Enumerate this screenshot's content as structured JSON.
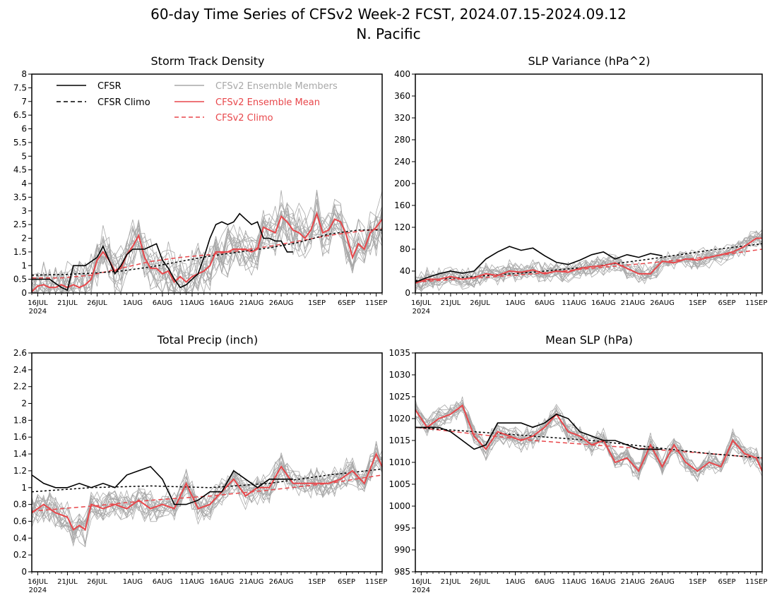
{
  "page": {
    "title": "60-day Time Series of CFSv2 Week-2 FCST, 2024.07.15-2024.09.12",
    "subtitle": "N. Pacific"
  },
  "legend": {
    "cfsr": "CFSR",
    "cfsr_climo": "CFSR Climo",
    "members": "CFSv2 Ensemble Members",
    "mean": "CFSv2 Ensemble Mean",
    "cfs_climo": "CFSv2 Climo"
  },
  "colors": {
    "cfsr": "#000000",
    "cfsr_climo": "#000000",
    "members": "#a8a8a8",
    "mean": "#e8474b",
    "cfs_climo": "#e8474b"
  },
  "xaxis": {
    "ticks": [
      "16JUL",
      "21JUL",
      "26JUL",
      "1AUG",
      "6AUG",
      "11AUG",
      "16AUG",
      "21AUG",
      "26AUG",
      "1SEP",
      "6SEP",
      "11SEP"
    ],
    "tick_days": [
      1,
      6,
      11,
      17,
      22,
      27,
      32,
      37,
      42,
      48,
      53,
      58
    ],
    "year": "2024",
    "range": [
      0,
      59
    ]
  },
  "chart_data": [
    {
      "id": "storm",
      "type": "line",
      "title": "Storm Track Density",
      "ylim": [
        0,
        8
      ],
      "yticks": [
        "0",
        "0.5",
        "1",
        "1.5",
        "2",
        "2.5",
        "3",
        "3.5",
        "4",
        "4.5",
        "5",
        "5.5",
        "6",
        "6.5",
        "7",
        "7.5",
        "8"
      ],
      "ytick_values": [
        0,
        0.5,
        1,
        1.5,
        2,
        2.5,
        3,
        3.5,
        4,
        4.5,
        5,
        5.5,
        6,
        6.5,
        7,
        7.5,
        8
      ],
      "legend": true,
      "member_count": 16,
      "member_spread": 0.75,
      "cfsr": {
        "x": [
          0,
          3,
          5,
          6,
          7,
          8,
          9,
          11,
          12,
          13,
          14,
          15,
          16,
          17,
          18,
          19,
          20,
          21,
          22,
          23,
          24,
          25,
          26,
          27,
          28,
          29,
          30,
          31,
          32,
          33,
          34,
          35,
          36,
          37,
          38,
          39,
          40,
          41,
          42,
          43,
          44
        ],
        "y": [
          0.5,
          0.5,
          0.2,
          0.1,
          1.0,
          1.0,
          1.0,
          1.3,
          1.7,
          1.2,
          0.7,
          1.0,
          1.4,
          1.6,
          1.6,
          1.6,
          1.7,
          1.8,
          1.2,
          0.9,
          0.5,
          0.2,
          0.3,
          0.5,
          0.7,
          1.3,
          2.0,
          2.5,
          2.6,
          2.5,
          2.6,
          2.9,
          2.7,
          2.5,
          2.6,
          2.0,
          2.0,
          1.9,
          1.9,
          1.5,
          1.5
        ]
      },
      "cfsr_climo": {
        "x": [
          0,
          5,
          10,
          15,
          20,
          25,
          30,
          35,
          40,
          45,
          50,
          55,
          59
        ],
        "y": [
          0.65,
          0.67,
          0.72,
          0.8,
          0.95,
          1.15,
          1.35,
          1.5,
          1.65,
          1.85,
          2.15,
          2.3,
          2.3
        ]
      },
      "mean": {
        "x": [
          0,
          1,
          2,
          3,
          4,
          5,
          6,
          7,
          8,
          9,
          10,
          11,
          12,
          13,
          14,
          15,
          16,
          17,
          18,
          19,
          20,
          21,
          22,
          23,
          24,
          25,
          26,
          27,
          28,
          29,
          30,
          31,
          32,
          33,
          34,
          35,
          36,
          37,
          38,
          39,
          40,
          41,
          42,
          43,
          44,
          45,
          46,
          47,
          48,
          49,
          50,
          51,
          52,
          53,
          54,
          55,
          56,
          57,
          58,
          59
        ],
        "y": [
          0.05,
          0.25,
          0.3,
          0.2,
          0.2,
          0.3,
          0.2,
          0.3,
          0.2,
          0.3,
          0.5,
          1.2,
          1.5,
          1.2,
          0.8,
          0.9,
          1.4,
          1.7,
          2.1,
          1.3,
          0.9,
          0.9,
          0.7,
          0.8,
          0.4,
          0.6,
          0.4,
          0.6,
          0.7,
          0.8,
          1.0,
          1.5,
          1.5,
          1.5,
          1.6,
          1.6,
          1.6,
          1.5,
          1.6,
          2.4,
          2.3,
          2.2,
          2.8,
          2.6,
          2.3,
          2.2,
          2.0,
          2.3,
          2.9,
          2.2,
          2.3,
          2.7,
          2.6,
          2.1,
          1.3,
          1.8,
          1.6,
          2.2,
          2.4,
          2.7
        ]
      },
      "cfs_climo": {
        "x": [
          0,
          5,
          10,
          15,
          20,
          25,
          30,
          35,
          40,
          45,
          50,
          55,
          59
        ],
        "y": [
          0.55,
          0.55,
          0.65,
          0.9,
          1.15,
          1.3,
          1.4,
          1.55,
          1.7,
          1.9,
          2.1,
          2.25,
          2.35
        ]
      }
    },
    {
      "id": "slpvar",
      "type": "line",
      "title": "SLP Variance (hPa^2)",
      "ylim": [
        0,
        400
      ],
      "yticks": [
        "0",
        "40",
        "80",
        "120",
        "160",
        "200",
        "240",
        "280",
        "320",
        "360",
        "400"
      ],
      "ytick_values": [
        0,
        40,
        80,
        120,
        160,
        200,
        240,
        280,
        320,
        360,
        400
      ],
      "legend": false,
      "member_count": 16,
      "member_spread": 15,
      "cfsr": {
        "x": [
          0,
          2,
          4,
          6,
          8,
          10,
          12,
          14,
          16,
          18,
          20,
          22,
          24,
          26,
          28,
          30,
          32,
          34,
          36,
          38,
          40,
          42
        ],
        "y": [
          20,
          28,
          35,
          40,
          36,
          40,
          62,
          75,
          85,
          78,
          82,
          68,
          56,
          52,
          60,
          70,
          75,
          62,
          70,
          65,
          72,
          68
        ]
      },
      "cfsr_climo": {
        "x": [
          0,
          10,
          20,
          30,
          40,
          50,
          59
        ],
        "y": [
          22,
          30,
          38,
          48,
          62,
          78,
          90
        ]
      },
      "mean": {
        "x": [
          0,
          2,
          4,
          6,
          8,
          10,
          12,
          14,
          16,
          18,
          20,
          22,
          24,
          26,
          28,
          30,
          32,
          34,
          36,
          38,
          40,
          42,
          44,
          46,
          48,
          50,
          52,
          54,
          56,
          58,
          59
        ],
        "y": [
          18,
          25,
          25,
          30,
          25,
          28,
          35,
          32,
          40,
          38,
          42,
          35,
          40,
          38,
          45,
          48,
          50,
          55,
          45,
          35,
          35,
          58,
          55,
          62,
          60,
          65,
          70,
          75,
          85,
          100,
          100
        ]
      },
      "cfs_climo": {
        "x": [
          0,
          10,
          20,
          30,
          40,
          50,
          59
        ],
        "y": [
          20,
          27,
          35,
          45,
          55,
          66,
          80
        ]
      }
    },
    {
      "id": "precip",
      "type": "line",
      "title": "Total Precip (inch)",
      "ylim": [
        0,
        2.6
      ],
      "yticks": [
        "0",
        "0.2",
        "0.4",
        "0.6",
        "0.8",
        "1",
        "1.2",
        "1.4",
        "1.6",
        "1.8",
        "2",
        "2.2",
        "2.4",
        "2.6"
      ],
      "ytick_values": [
        0,
        0.2,
        0.4,
        0.6,
        0.8,
        1.0,
        1.2,
        1.4,
        1.6,
        1.8,
        2.0,
        2.2,
        2.4,
        2.6
      ],
      "legend": false,
      "member_count": 16,
      "member_spread": 0.15,
      "cfsr": {
        "x": [
          0,
          2,
          4,
          6,
          8,
          10,
          12,
          14,
          16,
          18,
          20,
          22,
          24,
          26,
          28,
          30,
          32,
          34,
          36,
          38,
          40,
          42,
          44
        ],
        "y": [
          1.15,
          1.05,
          1.0,
          1.0,
          1.05,
          1.0,
          1.05,
          1.0,
          1.15,
          1.2,
          1.25,
          1.1,
          0.8,
          0.8,
          0.85,
          0.95,
          0.95,
          1.2,
          1.1,
          1.0,
          1.1,
          1.1,
          1.1
        ]
      },
      "cfsr_climo": {
        "x": [
          0,
          10,
          20,
          30,
          40,
          50,
          59
        ],
        "y": [
          0.95,
          1.0,
          1.02,
          1.0,
          1.05,
          1.15,
          1.22
        ]
      },
      "mean": {
        "x": [
          0,
          2,
          4,
          6,
          7,
          8,
          9,
          10,
          12,
          14,
          16,
          18,
          20,
          22,
          24,
          26,
          28,
          30,
          32,
          34,
          36,
          38,
          40,
          42,
          44,
          46,
          48,
          50,
          52,
          54,
          56,
          58,
          59
        ],
        "y": [
          0.7,
          0.8,
          0.7,
          0.65,
          0.5,
          0.55,
          0.5,
          0.8,
          0.75,
          0.8,
          0.75,
          0.85,
          0.75,
          0.8,
          0.75,
          1.05,
          0.75,
          0.8,
          0.95,
          1.1,
          0.9,
          1.0,
          1.0,
          1.25,
          1.05,
          1.05,
          1.05,
          1.05,
          1.1,
          1.2,
          1.05,
          1.4,
          1.25
        ]
      },
      "cfs_climo": {
        "x": [
          0,
          10,
          20,
          30,
          40,
          50,
          59
        ],
        "y": [
          0.72,
          0.78,
          0.85,
          0.9,
          0.97,
          1.05,
          1.15
        ]
      }
    },
    {
      "id": "meanslp",
      "type": "line",
      "title": "Mean SLP (hPa)",
      "ylim": [
        985,
        1035
      ],
      "yticks": [
        "985",
        "990",
        "995",
        "1000",
        "1005",
        "1010",
        "1015",
        "1020",
        "1025",
        "1030",
        "1035"
      ],
      "ytick_values": [
        985,
        990,
        995,
        1000,
        1005,
        1010,
        1015,
        1020,
        1025,
        1030,
        1035
      ],
      "legend": false,
      "member_count": 16,
      "member_spread": 2.0,
      "cfsr": {
        "x": [
          0,
          2,
          4,
          6,
          8,
          10,
          12,
          14,
          16,
          18,
          20,
          22,
          24,
          26,
          28,
          30,
          32,
          34,
          36,
          38,
          40,
          42
        ],
        "y": [
          1018,
          1018,
          1018,
          1017,
          1015,
          1013,
          1014,
          1019,
          1019,
          1019,
          1018,
          1019,
          1021,
          1020,
          1017,
          1016,
          1015,
          1015,
          1014,
          1013,
          1013,
          1013
        ]
      },
      "cfsr_climo": {
        "x": [
          0,
          10,
          20,
          30,
          40,
          50,
          59
        ],
        "y": [
          1018,
          1017,
          1016,
          1015,
          1013.5,
          1012,
          1011
        ]
      },
      "mean": {
        "x": [
          0,
          2,
          4,
          6,
          8,
          10,
          12,
          14,
          16,
          18,
          20,
          22,
          24,
          26,
          28,
          30,
          32,
          34,
          36,
          38,
          40,
          42,
          44,
          46,
          48,
          50,
          52,
          54,
          56,
          58,
          59
        ],
        "y": [
          1022,
          1018,
          1020,
          1021,
          1023,
          1016,
          1013,
          1017,
          1016,
          1015,
          1016,
          1018,
          1021,
          1017,
          1016,
          1014,
          1015,
          1010,
          1011,
          1008,
          1014,
          1009,
          1014,
          1010,
          1008,
          1010,
          1009,
          1015,
          1012,
          1011,
          1008
        ]
      },
      "cfs_climo": {
        "x": [
          0,
          10,
          20,
          30,
          40,
          50,
          59
        ],
        "y": [
          1018,
          1016.5,
          1015,
          1014,
          1013,
          1012,
          1011
        ]
      }
    }
  ]
}
